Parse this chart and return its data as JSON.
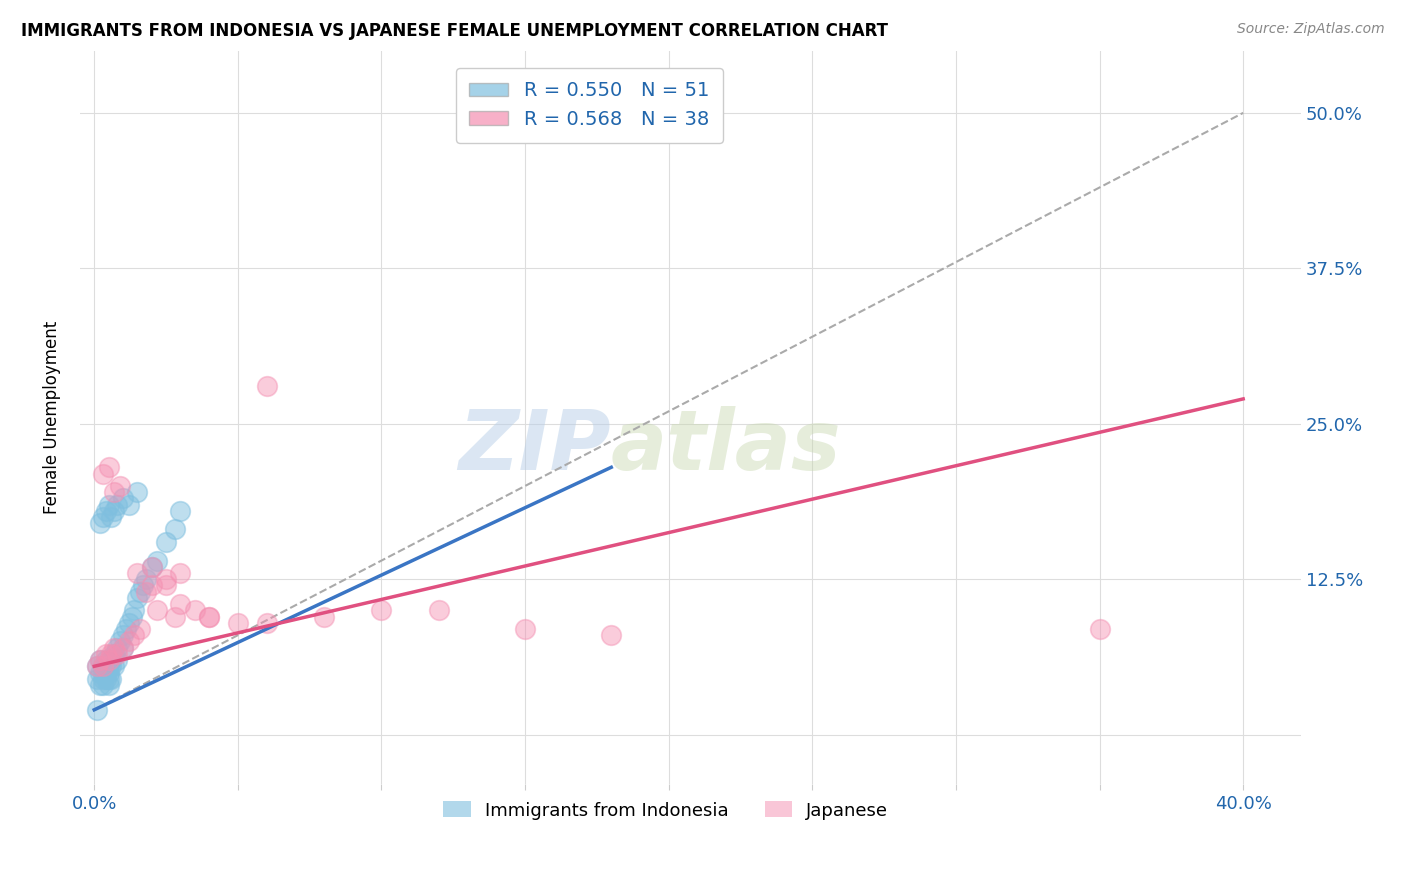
{
  "title": "IMMIGRANTS FROM INDONESIA VS JAPANESE FEMALE UNEMPLOYMENT CORRELATION CHART",
  "source": "Source: ZipAtlas.com",
  "ylabel": "Female Unemployment",
  "y_tick_positions": [
    0.0,
    0.125,
    0.25,
    0.375,
    0.5
  ],
  "y_tick_labels": [
    "",
    "12.5%",
    "25.0%",
    "37.5%",
    "50.0%"
  ],
  "x_tick_positions": [
    0.0,
    0.05,
    0.1,
    0.15,
    0.2,
    0.25,
    0.3,
    0.35,
    0.4
  ],
  "legend_blue_r": "R = 0.550",
  "legend_blue_n": "N = 51",
  "legend_pink_r": "R = 0.568",
  "legend_pink_n": "N = 38",
  "blue_color": "#7fbfdf",
  "pink_color": "#f48fb1",
  "blue_line_color": "#3a75c4",
  "pink_line_color": "#e05080",
  "dashed_line_color": "#aaaaaa",
  "watermark_zip": "ZIP",
  "watermark_atlas": "atlas",
  "blue_scatter_x": [
    0.001,
    0.001,
    0.002,
    0.002,
    0.002,
    0.003,
    0.003,
    0.003,
    0.003,
    0.004,
    0.004,
    0.004,
    0.004,
    0.005,
    0.005,
    0.005,
    0.005,
    0.006,
    0.006,
    0.006,
    0.007,
    0.007,
    0.008,
    0.008,
    0.009,
    0.01,
    0.01,
    0.011,
    0.012,
    0.013,
    0.014,
    0.015,
    0.016,
    0.017,
    0.018,
    0.02,
    0.022,
    0.025,
    0.028,
    0.03,
    0.002,
    0.003,
    0.004,
    0.005,
    0.006,
    0.007,
    0.008,
    0.01,
    0.012,
    0.015,
    0.001
  ],
  "blue_scatter_y": [
    0.045,
    0.055,
    0.05,
    0.06,
    0.04,
    0.05,
    0.045,
    0.055,
    0.04,
    0.055,
    0.05,
    0.045,
    0.06,
    0.05,
    0.055,
    0.045,
    0.04,
    0.06,
    0.055,
    0.045,
    0.065,
    0.055,
    0.07,
    0.06,
    0.075,
    0.08,
    0.07,
    0.085,
    0.09,
    0.095,
    0.1,
    0.11,
    0.115,
    0.12,
    0.125,
    0.135,
    0.14,
    0.155,
    0.165,
    0.18,
    0.17,
    0.175,
    0.18,
    0.185,
    0.175,
    0.18,
    0.185,
    0.19,
    0.185,
    0.195,
    0.02
  ],
  "pink_scatter_x": [
    0.001,
    0.002,
    0.003,
    0.004,
    0.005,
    0.006,
    0.007,
    0.008,
    0.01,
    0.012,
    0.014,
    0.016,
    0.018,
    0.02,
    0.022,
    0.025,
    0.028,
    0.03,
    0.035,
    0.04,
    0.05,
    0.06,
    0.08,
    0.1,
    0.12,
    0.15,
    0.18,
    0.003,
    0.005,
    0.007,
    0.009,
    0.015,
    0.02,
    0.025,
    0.03,
    0.04,
    0.35,
    0.06
  ],
  "pink_scatter_y": [
    0.055,
    0.06,
    0.055,
    0.065,
    0.06,
    0.065,
    0.07,
    0.065,
    0.07,
    0.075,
    0.08,
    0.085,
    0.115,
    0.12,
    0.1,
    0.12,
    0.095,
    0.105,
    0.1,
    0.095,
    0.09,
    0.09,
    0.095,
    0.1,
    0.1,
    0.085,
    0.08,
    0.21,
    0.215,
    0.195,
    0.2,
    0.13,
    0.135,
    0.125,
    0.13,
    0.095,
    0.085,
    0.28
  ],
  "blue_line_x0": 0.0,
  "blue_line_y0": 0.02,
  "blue_line_x1": 0.18,
  "blue_line_y1": 0.215,
  "pink_line_x0": 0.0,
  "pink_line_y0": 0.055,
  "pink_line_x1": 0.4,
  "pink_line_y1": 0.27,
  "dash_line_x0": 0.0,
  "dash_line_y0": 0.02,
  "dash_line_x1": 0.4,
  "dash_line_y1": 0.5,
  "xlim": [
    -0.005,
    0.42
  ],
  "ylim": [
    -0.04,
    0.55
  ]
}
